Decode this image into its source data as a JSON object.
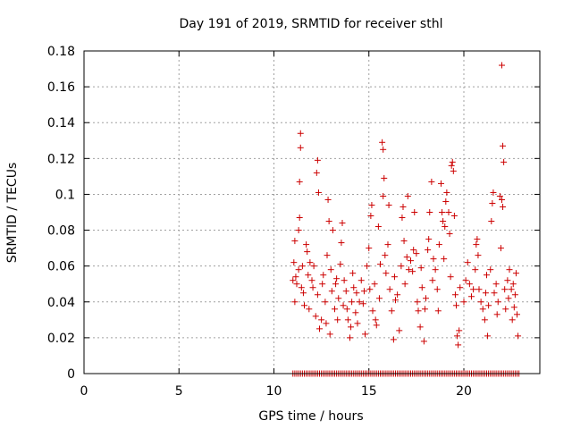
{
  "chart_data": {
    "type": "scatter",
    "title": "Day 191 of 2019, SRMTID for receiver sthl",
    "xlabel": "GPS time / hours",
    "ylabel": "SRMTID / TECUs",
    "xlim": [
      0,
      24
    ],
    "ylim": [
      0,
      0.18
    ],
    "xticks": [
      0,
      5,
      10,
      15,
      20
    ],
    "xtick_labels": [
      "0",
      "5",
      "10",
      "15",
      "20"
    ],
    "yticks": [
      0,
      0.02,
      0.04,
      0.06,
      0.08,
      0.1,
      0.12,
      0.14,
      0.16,
      0.18
    ],
    "ytick_labels": [
      "0",
      "0.02",
      "0.04",
      "0.06",
      "0.08",
      "0.1",
      "0.12",
      "0.14",
      "0.16",
      "0.18"
    ],
    "grid": true,
    "marker": "+",
    "color": "#cc0000",
    "series": [
      {
        "name": "SRMTID",
        "points": [
          [
            11.0,
            0.052
          ],
          [
            11.05,
            0.062
          ],
          [
            11.1,
            0.04
          ],
          [
            11.1,
            0.074
          ],
          [
            11.15,
            0.054
          ],
          [
            11.2,
            0.05
          ],
          [
            11.3,
            0.058
          ],
          [
            11.3,
            0.08
          ],
          [
            11.35,
            0.087
          ],
          [
            11.35,
            0.107
          ],
          [
            11.4,
            0.134
          ],
          [
            11.4,
            0.126
          ],
          [
            11.45,
            0.048
          ],
          [
            11.5,
            0.06
          ],
          [
            11.55,
            0.045
          ],
          [
            11.6,
            0.038
          ],
          [
            11.7,
            0.072
          ],
          [
            11.75,
            0.068
          ],
          [
            11.8,
            0.055
          ],
          [
            11.85,
            0.036
          ],
          [
            11.9,
            0.062
          ],
          [
            12.0,
            0.052
          ],
          [
            12.05,
            0.048
          ],
          [
            12.1,
            0.06
          ],
          [
            12.2,
            0.032
          ],
          [
            12.25,
            0.112
          ],
          [
            12.3,
            0.119
          ],
          [
            12.35,
            0.101
          ],
          [
            12.3,
            0.044
          ],
          [
            12.4,
            0.025
          ],
          [
            12.5,
            0.03
          ],
          [
            12.55,
            0.05
          ],
          [
            12.6,
            0.055
          ],
          [
            12.7,
            0.04
          ],
          [
            12.75,
            0.028
          ],
          [
            12.8,
            0.066
          ],
          [
            12.85,
            0.097
          ],
          [
            12.9,
            0.085
          ],
          [
            12.95,
            0.022
          ],
          [
            13.0,
            0.058
          ],
          [
            13.05,
            0.046
          ],
          [
            13.1,
            0.08
          ],
          [
            13.2,
            0.036
          ],
          [
            13.25,
            0.05
          ],
          [
            13.3,
            0.053
          ],
          [
            13.35,
            0.03
          ],
          [
            13.4,
            0.042
          ],
          [
            13.5,
            0.061
          ],
          [
            13.55,
            0.073
          ],
          [
            13.6,
            0.084
          ],
          [
            13.65,
            0.038
          ],
          [
            13.7,
            0.052
          ],
          [
            13.8,
            0.046
          ],
          [
            13.85,
            0.036
          ],
          [
            13.9,
            0.03
          ],
          [
            14.0,
            0.02
          ],
          [
            14.05,
            0.026
          ],
          [
            14.1,
            0.04
          ],
          [
            14.15,
            0.056
          ],
          [
            14.2,
            0.048
          ],
          [
            14.3,
            0.034
          ],
          [
            14.35,
            0.045
          ],
          [
            14.4,
            0.028
          ],
          [
            14.5,
            0.04
          ],
          [
            14.6,
            0.052
          ],
          [
            14.7,
            0.039
          ],
          [
            14.75,
            0.046
          ],
          [
            14.8,
            0.022
          ],
          [
            14.9,
            0.06
          ],
          [
            15.0,
            0.07
          ],
          [
            15.05,
            0.047
          ],
          [
            15.1,
            0.088
          ],
          [
            15.15,
            0.094
          ],
          [
            15.2,
            0.035
          ],
          [
            15.3,
            0.05
          ],
          [
            15.35,
            0.03
          ],
          [
            15.4,
            0.027
          ],
          [
            15.5,
            0.082
          ],
          [
            15.55,
            0.042
          ],
          [
            15.6,
            0.061
          ],
          [
            15.7,
            0.129
          ],
          [
            15.75,
            0.125
          ],
          [
            15.8,
            0.109
          ],
          [
            15.75,
            0.099
          ],
          [
            15.85,
            0.066
          ],
          [
            15.9,
            0.056
          ],
          [
            16.0,
            0.072
          ],
          [
            16.05,
            0.094
          ],
          [
            16.1,
            0.047
          ],
          [
            16.2,
            0.035
          ],
          [
            16.3,
            0.019
          ],
          [
            16.35,
            0.054
          ],
          [
            16.4,
            0.041
          ],
          [
            16.5,
            0.044
          ],
          [
            16.6,
            0.024
          ],
          [
            16.7,
            0.06
          ],
          [
            16.75,
            0.087
          ],
          [
            16.8,
            0.093
          ],
          [
            16.85,
            0.074
          ],
          [
            16.9,
            0.05
          ],
          [
            17.0,
            0.065
          ],
          [
            17.05,
            0.099
          ],
          [
            17.1,
            0.058
          ],
          [
            17.2,
            0.063
          ],
          [
            17.3,
            0.057
          ],
          [
            17.35,
            0.069
          ],
          [
            17.4,
            0.09
          ],
          [
            17.5,
            0.067
          ],
          [
            17.55,
            0.04
          ],
          [
            17.6,
            0.035
          ],
          [
            17.7,
            0.026
          ],
          [
            17.75,
            0.059
          ],
          [
            17.8,
            0.048
          ],
          [
            17.9,
            0.018
          ],
          [
            17.95,
            0.036
          ],
          [
            18.0,
            0.042
          ],
          [
            18.1,
            0.069
          ],
          [
            18.15,
            0.075
          ],
          [
            18.2,
            0.09
          ],
          [
            18.3,
            0.107
          ],
          [
            18.35,
            0.052
          ],
          [
            18.4,
            0.064
          ],
          [
            18.5,
            0.058
          ],
          [
            18.6,
            0.047
          ],
          [
            18.65,
            0.035
          ],
          [
            18.7,
            0.072
          ],
          [
            18.8,
            0.106
          ],
          [
            18.85,
            0.09
          ],
          [
            18.9,
            0.085
          ],
          [
            18.95,
            0.064
          ],
          [
            19.0,
            0.082
          ],
          [
            19.05,
            0.096
          ],
          [
            19.1,
            0.101
          ],
          [
            19.2,
            0.09
          ],
          [
            19.25,
            0.078
          ],
          [
            19.3,
            0.054
          ],
          [
            19.35,
            0.116
          ],
          [
            19.4,
            0.118
          ],
          [
            19.45,
            0.113
          ],
          [
            19.5,
            0.088
          ],
          [
            19.55,
            0.044
          ],
          [
            19.6,
            0.038
          ],
          [
            19.65,
            0.021
          ],
          [
            19.7,
            0.016
          ],
          [
            19.75,
            0.024
          ],
          [
            19.8,
            0.048
          ],
          [
            20.0,
            0.04
          ],
          [
            20.1,
            0.052
          ],
          [
            20.2,
            0.062
          ],
          [
            20.3,
            0.05
          ],
          [
            20.4,
            0.043
          ],
          [
            20.5,
            0.047
          ],
          [
            20.6,
            0.058
          ],
          [
            20.65,
            0.072
          ],
          [
            20.7,
            0.075
          ],
          [
            20.75,
            0.066
          ],
          [
            20.8,
            0.047
          ],
          [
            20.9,
            0.04
          ],
          [
            21.0,
            0.036
          ],
          [
            21.1,
            0.03
          ],
          [
            21.15,
            0.045
          ],
          [
            21.2,
            0.055
          ],
          [
            21.25,
            0.021
          ],
          [
            21.3,
            0.038
          ],
          [
            21.4,
            0.058
          ],
          [
            21.45,
            0.085
          ],
          [
            21.5,
            0.095
          ],
          [
            21.55,
            0.101
          ],
          [
            21.6,
            0.045
          ],
          [
            21.7,
            0.05
          ],
          [
            21.75,
            0.033
          ],
          [
            21.8,
            0.04
          ],
          [
            21.9,
            0.099
          ],
          [
            22.0,
            0.097
          ],
          [
            22.05,
            0.093
          ],
          [
            21.95,
            0.07
          ],
          [
            22.0,
            0.172
          ],
          [
            22.05,
            0.127
          ],
          [
            22.1,
            0.118
          ],
          [
            22.15,
            0.047
          ],
          [
            22.2,
            0.036
          ],
          [
            22.3,
            0.052
          ],
          [
            22.35,
            0.042
          ],
          [
            22.4,
            0.058
          ],
          [
            22.5,
            0.047
          ],
          [
            22.55,
            0.03
          ],
          [
            22.6,
            0.05
          ],
          [
            22.65,
            0.037
          ],
          [
            22.7,
            0.044
          ],
          [
            22.75,
            0.056
          ],
          [
            22.8,
            0.033
          ],
          [
            22.85,
            0.021
          ]
        ]
      }
    ],
    "baseline_zero_x_range": [
      11.0,
      22.9
    ],
    "baseline_zero_step": 0.1
  }
}
